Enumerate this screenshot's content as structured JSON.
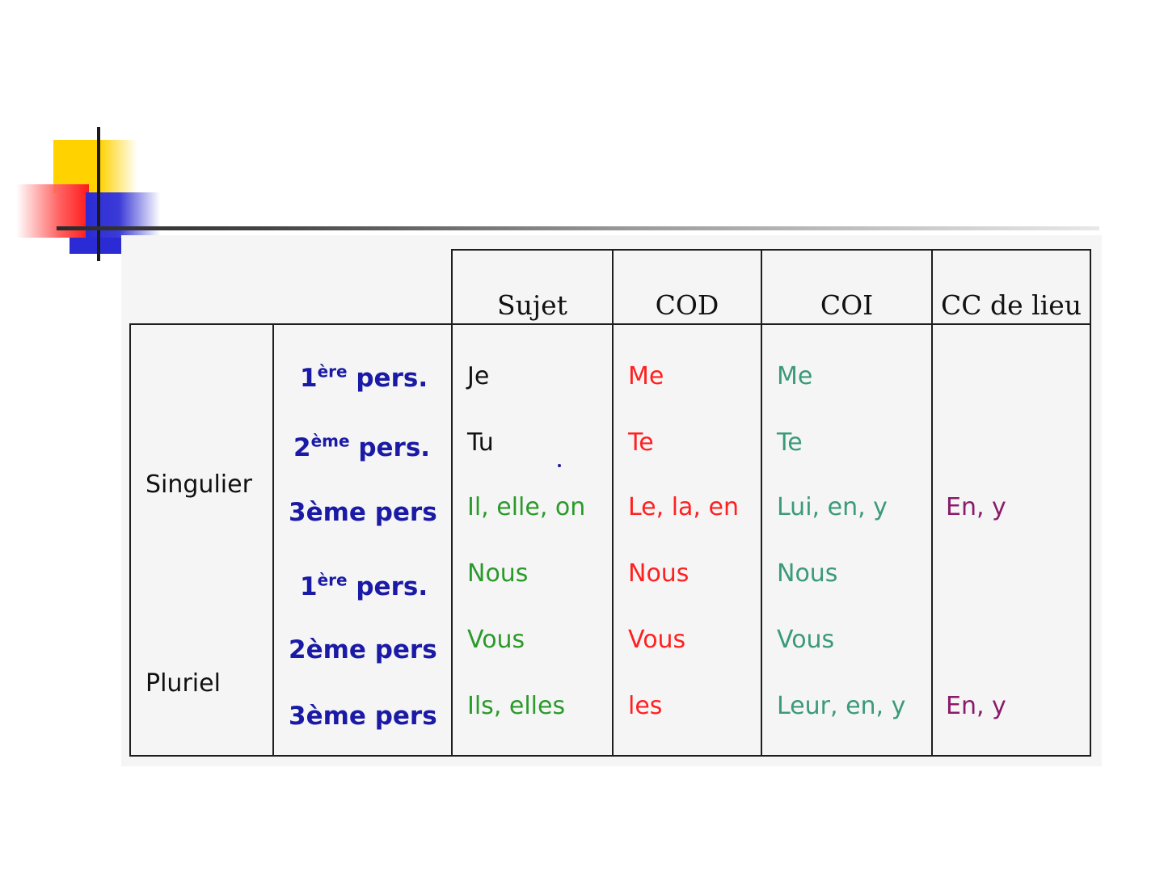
{
  "headers": {
    "sujet": "Sujet",
    "cod": "COD",
    "coi": "COI",
    "cc_lieu": "CC de lieu"
  },
  "groups": {
    "singular": "Singulier",
    "plural": "Pluriel"
  },
  "persons": [
    {
      "base": "1",
      "sup": "ère",
      "rest": " pers."
    },
    {
      "base": "2",
      "sup": "ème",
      "rest": " pers."
    },
    {
      "base": "3ème pers",
      "sup": "",
      "rest": ""
    },
    {
      "base": "1",
      "sup": "ère",
      "rest": " pers."
    },
    {
      "base": "2ème pers",
      "sup": "",
      "rest": ""
    },
    {
      "base": "3ème pers",
      "sup": "",
      "rest": ""
    }
  ],
  "sujet": [
    "Je",
    "Tu",
    "Il, elle, on",
    "Nous",
    "Vous",
    "Ils, elles"
  ],
  "cod": [
    "Me",
    "Te",
    "Le, la, en",
    "Nous",
    "Vous",
    "les"
  ],
  "coi": [
    "Me",
    "Te",
    "Lui, en, y",
    "Nous",
    "Vous",
    "Leur, en, y"
  ],
  "cc_lieu": [
    "",
    "",
    "En, y",
    "",
    "",
    "En, y"
  ],
  "colors": {
    "person": "#1a1aa6",
    "sujet_first": "#111111",
    "sujet_rest": "#2a9a2a",
    "cod": "#ff2020",
    "coi": "#3a9a7a",
    "cc_lieu": "#8a1a6a"
  }
}
